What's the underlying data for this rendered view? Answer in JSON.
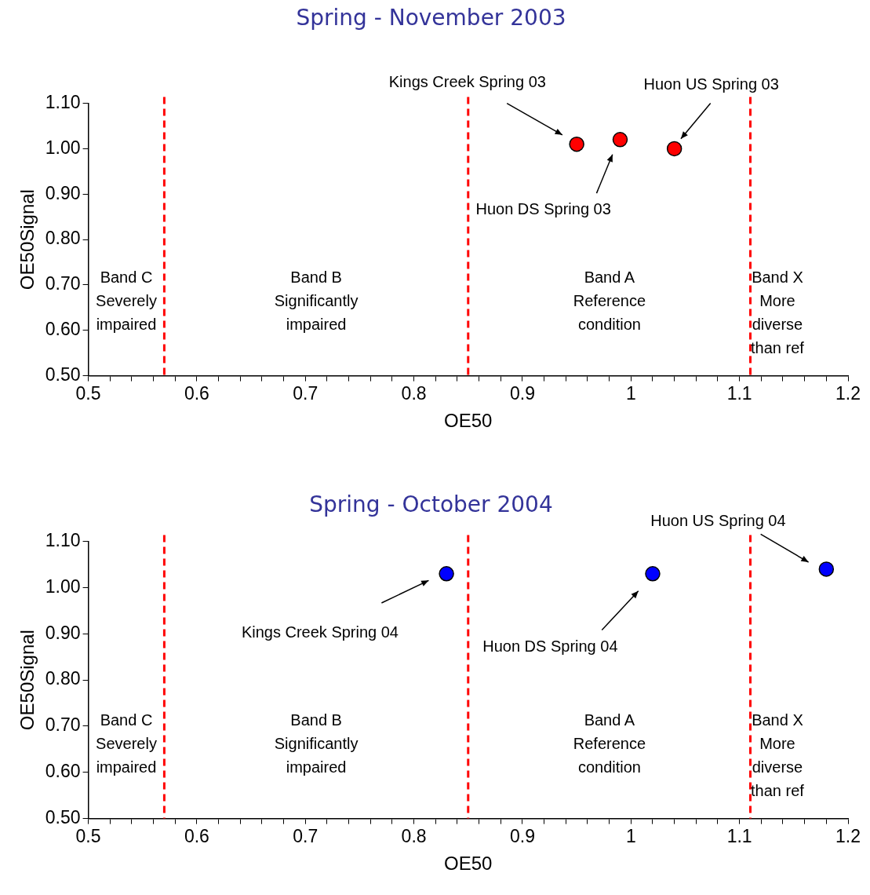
{
  "chart_data": [
    {
      "type": "scatter",
      "title": "Spring - November 2003",
      "xlabel": "OE50",
      "ylabel": "OE50Signal",
      "series": [
        {
          "color": "#ff0000",
          "x": [
            0.95,
            0.99,
            1.04
          ],
          "values": [
            1.01,
            1.02,
            1.0
          ]
        }
      ],
      "xlim": [
        0.5,
        1.2
      ],
      "ylim": [
        0.5,
        1.1
      ],
      "xticks": [
        0.5,
        {
          "value": 0.52,
          "label": null
        },
        {
          "value": 0.54,
          "label": null
        },
        {
          "value": 0.56,
          "label": null
        },
        {
          "value": 0.58,
          "label": null
        },
        0.6,
        {
          "value": 0.62,
          "label": null
        },
        {
          "value": 0.64,
          "label": null
        },
        {
          "value": 0.66,
          "label": null
        },
        {
          "value": 0.68,
          "label": null
        },
        0.7,
        {
          "value": 0.72,
          "label": null
        },
        {
          "value": 0.74,
          "label": null
        },
        {
          "value": 0.76,
          "label": null
        },
        {
          "value": 0.78,
          "label": null
        },
        0.8,
        {
          "value": 0.82,
          "label": null
        },
        {
          "value": 0.84,
          "label": null
        },
        {
          "value": 0.86,
          "label": null
        },
        {
          "value": 0.88,
          "label": null
        },
        0.9,
        {
          "value": 0.92,
          "label": null
        },
        {
          "value": 0.94,
          "label": null
        },
        {
          "value": 0.96,
          "label": null
        },
        {
          "value": 0.98,
          "label": null
        },
        1,
        {
          "value": 1.02,
          "label": null
        },
        {
          "value": 1.04,
          "label": null
        },
        {
          "value": 1.06,
          "label": null
        },
        {
          "value": 1.08,
          "label": null
        },
        1.1,
        {
          "value": 1.12,
          "label": null
        },
        {
          "value": 1.14,
          "label": null
        },
        {
          "value": 1.16,
          "label": null
        },
        {
          "value": 1.18,
          "label": null
        },
        1.2
      ],
      "yticks": [
        {
          "value": 0.5,
          "label": "0.50"
        },
        {
          "value": 0.6,
          "label": "0.60"
        },
        {
          "value": 0.7,
          "label": "0.70"
        },
        {
          "value": 0.8,
          "label": "0.80"
        },
        {
          "value": 0.9,
          "label": "0.90"
        },
        {
          "value": 1.0,
          "label": "1.00"
        },
        {
          "value": 1.1,
          "label": "1.10"
        }
      ],
      "marker": "circle",
      "grid": false,
      "legend": false,
      "ref_lines": [
        {
          "axis": "x",
          "value": 0.57,
          "color": "#ff0000",
          "line_style": "dashed"
        },
        {
          "axis": "x",
          "value": 0.85,
          "color": "#ff0000",
          "line_style": "dashed"
        },
        {
          "axis": "x",
          "value": 1.11,
          "color": "#ff0000",
          "line_style": "dashed"
        }
      ],
      "annotations": [
        "Kings Creek Spring 03",
        "Huon DS Spring 03",
        "Huon US Spring 03",
        "Band C\nSeverely\nimpaired",
        "Band B\nSignificantly\nimpaired",
        "Band A\nReference\ncondition",
        "Band X\nMore\ndiverse\nthan ref"
      ]
    },
    {
      "type": "scatter",
      "title": "Spring - October 2004",
      "xlabel": "OE50",
      "ylabel": "OE50Signal",
      "series": [
        {
          "color": "#0000ff",
          "x": [
            0.83,
            1.02,
            1.18
          ],
          "values": [
            1.03,
            1.03,
            1.04
          ]
        }
      ],
      "xlim": [
        0.5,
        1.2
      ],
      "ylim": [
        0.5,
        1.1
      ],
      "xticks": [
        0.5,
        {
          "value": 0.52,
          "label": null
        },
        {
          "value": 0.54,
          "label": null
        },
        {
          "value": 0.56,
          "label": null
        },
        {
          "value": 0.58,
          "label": null
        },
        0.6,
        {
          "value": 0.62,
          "label": null
        },
        {
          "value": 0.64,
          "label": null
        },
        {
          "value": 0.66,
          "label": null
        },
        {
          "value": 0.68,
          "label": null
        },
        0.7,
        {
          "value": 0.72,
          "label": null
        },
        {
          "value": 0.74,
          "label": null
        },
        {
          "value": 0.76,
          "label": null
        },
        {
          "value": 0.78,
          "label": null
        },
        0.8,
        {
          "value": 0.82,
          "label": null
        },
        {
          "value": 0.84,
          "label": null
        },
        {
          "value": 0.86,
          "label": null
        },
        {
          "value": 0.88,
          "label": null
        },
        0.9,
        {
          "value": 0.92,
          "label": null
        },
        {
          "value": 0.94,
          "label": null
        },
        {
          "value": 0.96,
          "label": null
        },
        {
          "value": 0.98,
          "label": null
        },
        1,
        {
          "value": 1.02,
          "label": null
        },
        {
          "value": 1.04,
          "label": null
        },
        {
          "value": 1.06,
          "label": null
        },
        {
          "value": 1.08,
          "label": null
        },
        1.1,
        {
          "value": 1.12,
          "label": null
        },
        {
          "value": 1.14,
          "label": null
        },
        {
          "value": 1.16,
          "label": null
        },
        {
          "value": 1.18,
          "label": null
        },
        1.2
      ],
      "yticks": [
        {
          "value": 0.5,
          "label": "0.50"
        },
        {
          "value": 0.6,
          "label": "0.60"
        },
        {
          "value": 0.7,
          "label": "0.70"
        },
        {
          "value": 0.8,
          "label": "0.80"
        },
        {
          "value": 0.9,
          "label": "0.90"
        },
        {
          "value": 1.0,
          "label": "1.00"
        },
        {
          "value": 1.1,
          "label": "1.10"
        }
      ],
      "marker": "circle",
      "grid": false,
      "legend": false,
      "ref_lines": [
        {
          "axis": "x",
          "value": 0.57,
          "color": "#ff0000",
          "line_style": "dashed"
        },
        {
          "axis": "x",
          "value": 0.85,
          "color": "#ff0000",
          "line_style": "dashed"
        },
        {
          "axis": "x",
          "value": 1.11,
          "color": "#ff0000",
          "line_style": "dashed"
        }
      ],
      "annotations": [
        "Kings Creek Spring 04",
        "Huon DS Spring 04",
        "Huon US Spring 04",
        "Band C\nSeverely\nimpaired",
        "Band B\nSignificantly\nimpaired",
        "Band A\nReference\ncondition",
        "Band X\nMore\ndiverse\nthan ref"
      ]
    }
  ]
}
